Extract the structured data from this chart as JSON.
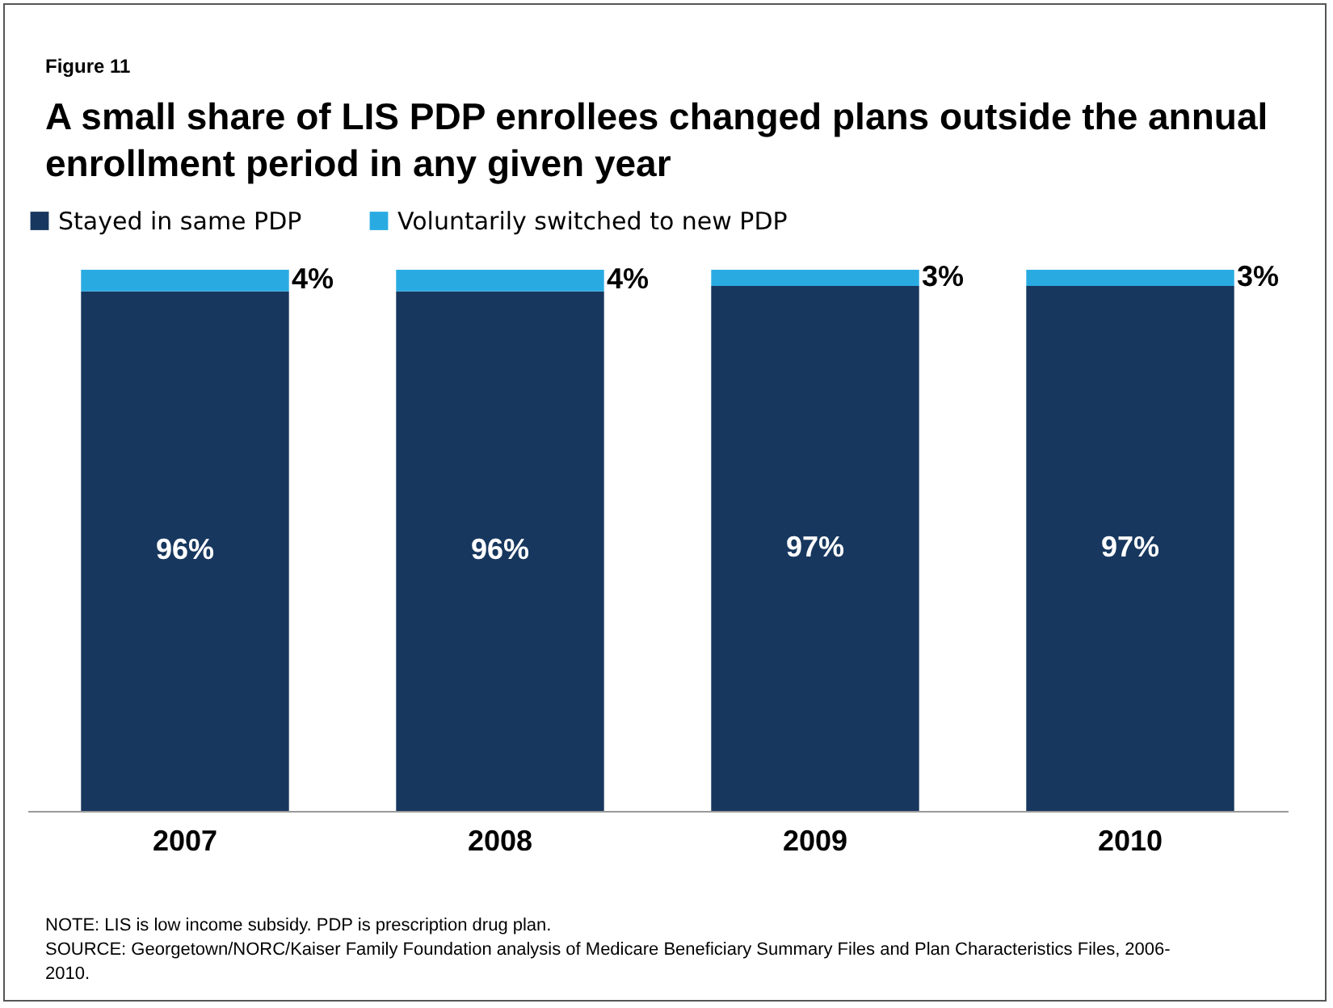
{
  "chart_data": {
    "type": "bar",
    "title": "A small share of LIS PDP enrollees changed plans outside the annual enrollment period in any given year",
    "subtitle": "Figure 11",
    "categories": [
      "2007",
      "2008",
      "2009",
      "2010"
    ],
    "stacked": true,
    "legend": "top",
    "series": [
      {
        "name": "Stayed in same PDP",
        "color": "#17375e",
        "values": [
          96,
          96,
          97,
          97
        ],
        "value_labels": [
          "96%",
          "96%",
          "97%",
          "97%"
        ]
      },
      {
        "name": "Voluntarily switched to new PDP",
        "color": "#29abe2",
        "values": [
          4,
          4,
          3,
          3
        ],
        "value_labels": [
          "4%",
          "4%",
          "3%",
          "3%"
        ]
      }
    ],
    "annotations": [
      "NOTE:  LIS is low income subsidy.  PDP is prescription drug plan.",
      "SOURCE: Georgetown/NORC/Kaiser Family Foundation analysis of Medicare Beneficiary Summary Files and Plan Characteristics Files, 2006-2010."
    ]
  }
}
